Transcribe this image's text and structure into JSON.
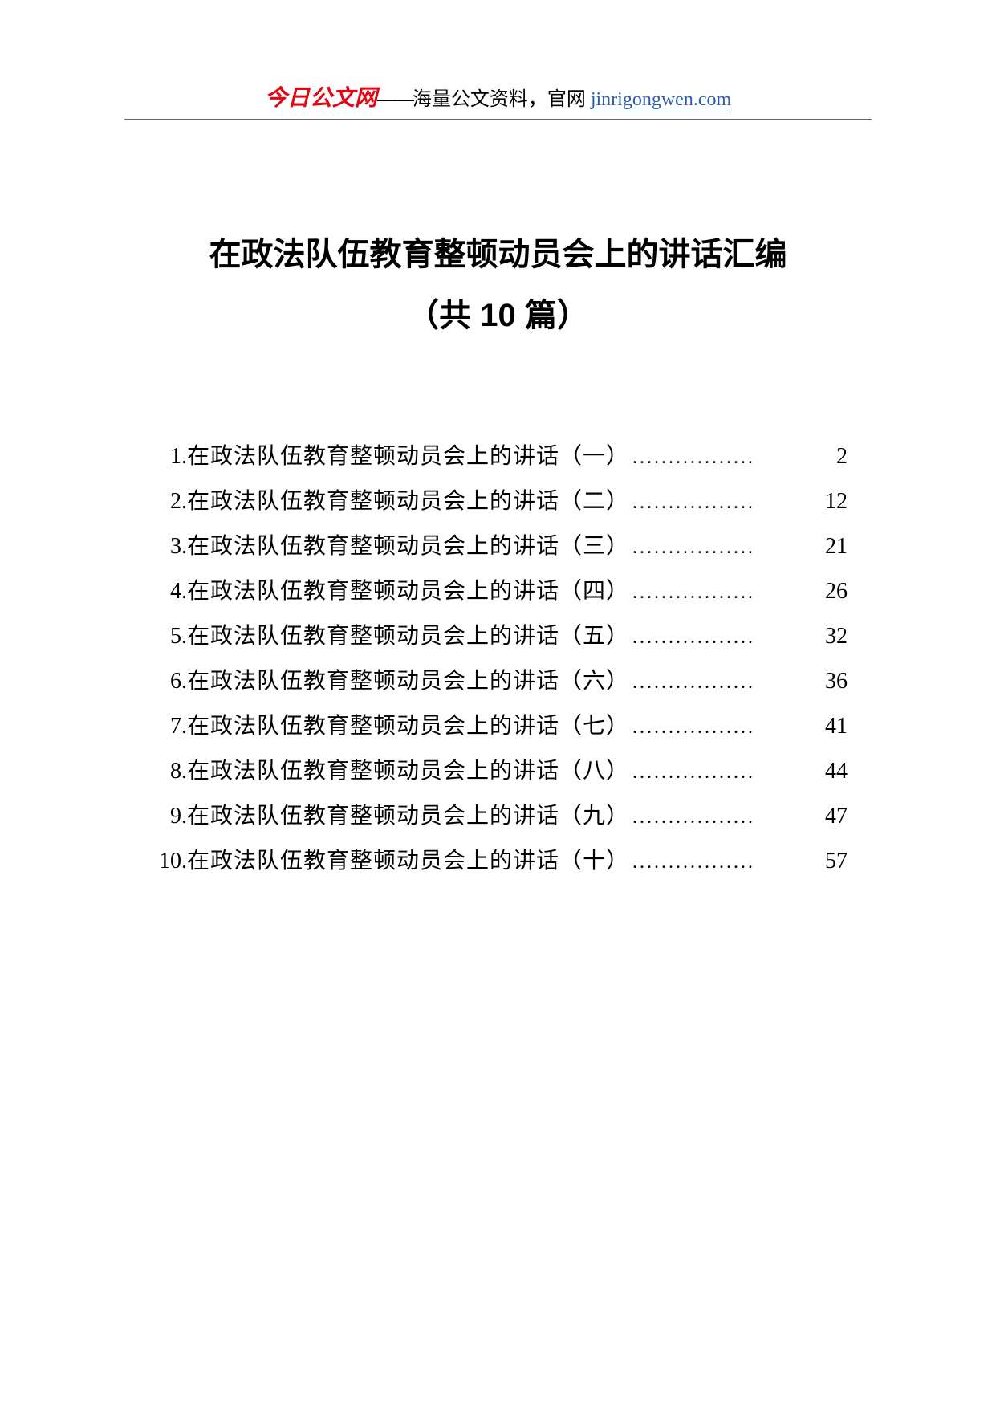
{
  "header": {
    "brand": "今日公文网",
    "dash": "——",
    "slogan": "海量公文资料，官网 ",
    "url": "jinrigongwen.com"
  },
  "title_line1": "在政法队伍教育整顿动员会上的讲话汇编",
  "title_line2": "（共 10 篇）",
  "toc": [
    {
      "num": "1. ",
      "text": " 在政法队伍教育整顿动员会上的讲话（一）",
      "page": "2"
    },
    {
      "num": "2. ",
      "text": " 在政法队伍教育整顿动员会上的讲话（二）",
      "page": "12"
    },
    {
      "num": "3. ",
      "text": " 在政法队伍教育整顿动员会上的讲话（三）",
      "page": "21"
    },
    {
      "num": "4. ",
      "text": " 在政法队伍教育整顿动员会上的讲话（四）",
      "page": "26"
    },
    {
      "num": "5. ",
      "text": " 在政法队伍教育整顿动员会上的讲话（五）",
      "page": "32"
    },
    {
      "num": "6. ",
      "text": " 在政法队伍教育整顿动员会上的讲话（六）",
      "page": "36"
    },
    {
      "num": "7. ",
      "text": " 在政法队伍教育整顿动员会上的讲话（七）",
      "page": "41"
    },
    {
      "num": "8. ",
      "text": " 在政法队伍教育整顿动员会上的讲话（八）",
      "page": "44"
    },
    {
      "num": "9. ",
      "text": " 在政法队伍教育整顿动员会上的讲话（九）",
      "page": "47"
    },
    {
      "num": "10.",
      "text": "在政法队伍教育整顿动员会上的讲话（十）",
      "page": "57"
    }
  ],
  "colors": {
    "brand_red": "#e30613",
    "link_blue": "#2a5db0",
    "text_black": "#000000",
    "background": "#ffffff",
    "divider": "#666666"
  },
  "typography": {
    "header_fontsize": 24,
    "brand_fontsize": 28,
    "title_fontsize": 40,
    "toc_fontsize": 28
  }
}
